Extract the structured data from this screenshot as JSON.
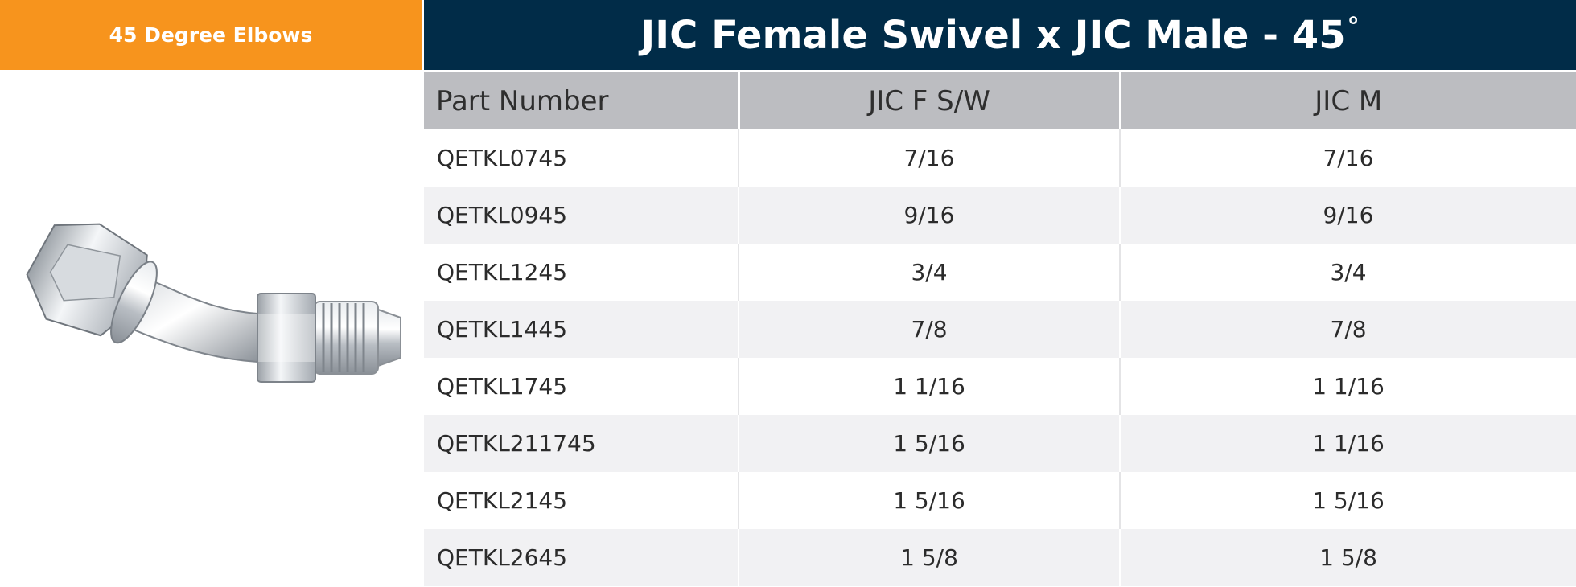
{
  "category": {
    "label": "45 Degree Elbows"
  },
  "title": {
    "text": "JIC Female Swivel x JIC Male - 45",
    "degree_symbol": "°"
  },
  "product_image": {
    "icon": "jic-45-degree-elbow-fitting-photo"
  },
  "table": {
    "headers": [
      "Part Number",
      "JIC F S/W",
      "JIC M"
    ],
    "rows": [
      [
        "QETKL0745",
        "7/16",
        "7/16"
      ],
      [
        "QETKL0945",
        "9/16",
        "9/16"
      ],
      [
        "QETKL1245",
        "3/4",
        "3/4"
      ],
      [
        "QETKL1445",
        "7/8",
        "7/8"
      ],
      [
        "QETKL1745",
        "1 1/16",
        "1 1/16"
      ],
      [
        "QETKL211745",
        "1 5/16",
        "1 1/16"
      ],
      [
        "QETKL2145",
        "1 5/16",
        "1 5/16"
      ],
      [
        "QETKL2645",
        "1 5/8",
        "1 5/8"
      ]
    ]
  },
  "colors": {
    "category_bg": "#f7941d",
    "title_bg": "#012c48",
    "header_bg": "#bcbdc1",
    "row_alt_bg": "#f1f1f3"
  }
}
